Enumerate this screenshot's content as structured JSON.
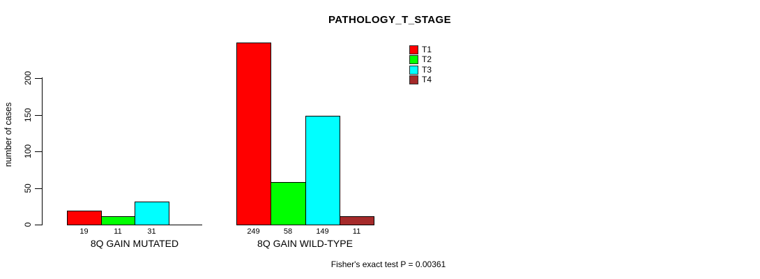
{
  "chart_data": {
    "type": "bar",
    "title": "PATHOLOGY_T_STAGE",
    "ylabel": "number of cases",
    "xlabel": "",
    "ylim": [
      0,
      200
    ],
    "yticks": [
      0,
      50,
      100,
      150,
      200
    ],
    "grid": false,
    "legend_position": "top-right",
    "categories": [
      "8Q GAIN MUTATED",
      "8Q GAIN WILD-TYPE"
    ],
    "series": [
      {
        "name": "T1",
        "color": "#ff0000",
        "values": [
          19,
          249
        ]
      },
      {
        "name": "T2",
        "color": "#00ff00",
        "values": [
          11,
          58
        ]
      },
      {
        "name": "T3",
        "color": "#00ffff",
        "values": [
          31,
          149
        ]
      },
      {
        "name": "T4",
        "color": "#a52a2a",
        "values": [
          null,
          11
        ]
      }
    ],
    "bar_value_labels": [
      [
        "19",
        "11",
        "31"
      ],
      [
        "249",
        "58",
        "149",
        "11"
      ]
    ],
    "annotation": "Fisher's exact test P = 0.00361"
  }
}
